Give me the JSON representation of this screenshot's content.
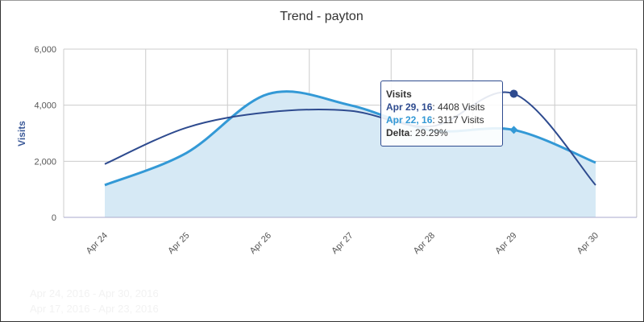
{
  "chart_data": {
    "type": "area",
    "title": "Trend - payton",
    "ylabel": "Visits",
    "ylim": [
      0,
      6000
    ],
    "yticks": [
      "0",
      "2,000",
      "4,000",
      "6,000"
    ],
    "categories": [
      "Apr 24",
      "Apr 25",
      "Apr 26",
      "Apr 27",
      "Apr 28",
      "Apr 29",
      "Apr 30"
    ],
    "grid": true,
    "series": [
      {
        "name": "Apr 24, 2016 - Apr 30, 2016",
        "color": "#2e4b8f",
        "values": [
          1900,
          3200,
          3750,
          3800,
          3250,
          4408,
          1150
        ]
      },
      {
        "name": "Apr 17, 2016 - Apr 23, 2016",
        "color": "#3399d6",
        "fill": "#d6e9f5",
        "values": [
          1150,
          2300,
          4400,
          4000,
          3100,
          3117,
          1950
        ]
      }
    ],
    "tooltip": {
      "title": "Visits",
      "current_label": "Apr 29, 16",
      "current_value": "4408 Visits",
      "previous_label": "Apr 22, 16",
      "previous_value": "3117 Visits",
      "delta_label": "Delta",
      "delta_value": "29.29%"
    }
  }
}
